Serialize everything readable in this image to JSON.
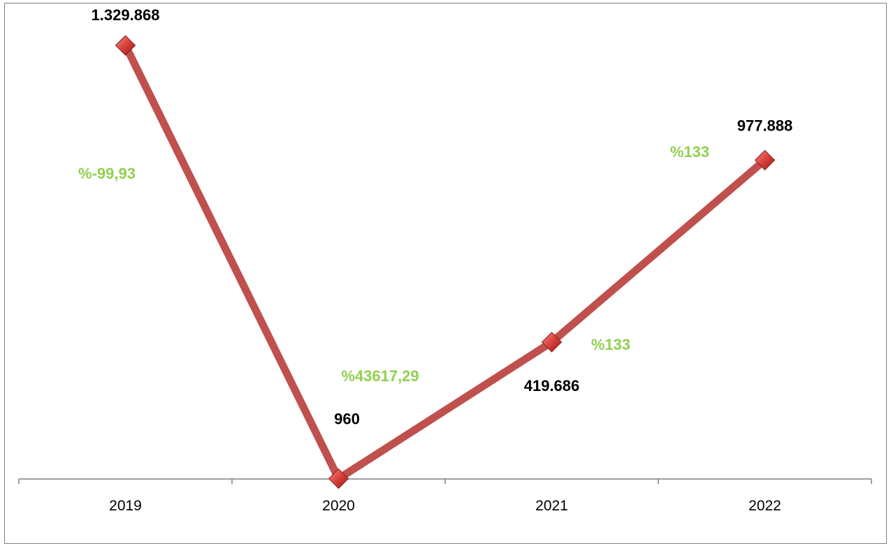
{
  "chart_data": {
    "type": "line",
    "categories": [
      "2019",
      "2020",
      "2021",
      "2022"
    ],
    "series": [
      {
        "values": [
          1329868,
          960,
          419686,
          977888
        ],
        "data_labels": [
          "1.329.868",
          "960",
          "419.686",
          "977.888"
        ],
        "color": "#c0504d"
      }
    ],
    "change_labels": [
      {
        "from": "2019",
        "to": "2020",
        "text": "%-99,93"
      },
      {
        "from": "2020",
        "to": "2021",
        "text": "%43617,29"
      },
      {
        "from": "2021",
        "to": "2022",
        "text": "%133"
      },
      {
        "from": "2021",
        "to": "2022",
        "text": "%133"
      }
    ],
    "change_label_color": "#92d050",
    "ylim": [
      0,
      1329868
    ],
    "grid": false,
    "legend": "none"
  }
}
